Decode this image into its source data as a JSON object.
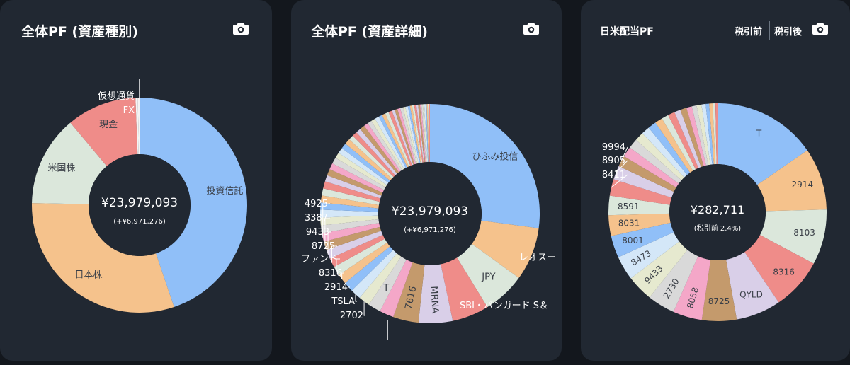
{
  "colors": {
    "background": "#13171d",
    "card": "#212832",
    "hole": "#212832",
    "label_on_slice": "#3a3f47",
    "label_outside": "#ffffff",
    "separator": "#f4f4f4"
  },
  "cards": [
    {
      "title": "全体PF (資産種別)",
      "camera_icon": "camera-icon"
    },
    {
      "title": "全体PF (資産詳細)",
      "camera_icon": "camera-icon"
    },
    {
      "title": "日米配当PF",
      "toggle_before": "税引前",
      "toggle_after": "税引後",
      "camera_icon": "camera-icon"
    }
  ],
  "chart_data": [
    {
      "type": "pie",
      "title": "全体PF (資産種別)",
      "center_value": "¥23,979,093",
      "center_sub": "(+¥6,971,276)",
      "slices": [
        {
          "label": "投資信託",
          "value": 44.8,
          "color": "#90bff8"
        },
        {
          "label": "日本株",
          "value": 30.5,
          "color": "#f5c28c"
        },
        {
          "label": "米国株",
          "value": 13.6,
          "color": "#dbe7db"
        },
        {
          "label": "現金",
          "value": 10.5,
          "color": "#ef8c89"
        },
        {
          "label": "FX",
          "value": 0.35,
          "color": "#f4f4f4"
        },
        {
          "label": "仮想通貨",
          "value": 0.25,
          "color": "#f4f4f4"
        }
      ]
    },
    {
      "type": "pie",
      "title": "全体PF (資産詳細)",
      "center_value": "¥23,979,093",
      "center_sub": "(+¥6,971,276)",
      "slices": [
        {
          "label": "ひふみ投信",
          "value": 26.0,
          "color": "#90bff8"
        },
        {
          "label": "レオスー",
          "value": 7.5,
          "color": "#f5c28c"
        },
        {
          "label": "JPY",
          "value": 6.0,
          "color": "#dbe7db"
        },
        {
          "label": "SBI・バンガード S＆",
          "value": 5.2,
          "color": "#ef8c89"
        },
        {
          "label": "MRNA",
          "value": 4.8,
          "color": "#d9cfe8"
        },
        {
          "label": "7616",
          "value": 3.6,
          "color": "#c49a6c"
        },
        {
          "label": "",
          "value": 2.0,
          "color": "#f4a7c8"
        },
        {
          "label": "T",
          "value": 1.8,
          "color": "#d9d9d9"
        },
        {
          "label": "2702",
          "value": 1.6,
          "color": "#e6e9cf"
        },
        {
          "label": "TSLA",
          "value": 1.5,
          "color": "#d4e7f8"
        },
        {
          "label": "2914",
          "value": 1.4,
          "color": "#90bff8"
        },
        {
          "label": "8316",
          "value": 1.4,
          "color": "#f5c28c"
        },
        {
          "label": "ファンド",
          "value": 1.3,
          "color": "#dbe7db"
        },
        {
          "label": "8725",
          "value": 1.3,
          "color": "#ef8c89"
        },
        {
          "label": "9433",
          "value": 1.3,
          "color": "#d9cfe8"
        },
        {
          "label": "3387",
          "value": 1.2,
          "color": "#c49a6c"
        },
        {
          "label": "4925",
          "value": 1.2,
          "color": "#f4a7c8"
        },
        {
          "label": "",
          "value": 1.1,
          "color": "#d9d9d9"
        },
        {
          "label": "",
          "value": 1.1,
          "color": "#e6e9cf"
        },
        {
          "label": "",
          "value": 1.1,
          "color": "#d4e7f8"
        },
        {
          "label": "",
          "value": 1.0,
          "color": "#90bff8"
        },
        {
          "label": "",
          "value": 1.0,
          "color": "#f5c28c"
        },
        {
          "label": "",
          "value": 1.0,
          "color": "#dbe7db"
        },
        {
          "label": "",
          "value": 1.0,
          "color": "#ef8c89"
        },
        {
          "label": "",
          "value": 0.9,
          "color": "#d9cfe8"
        },
        {
          "label": "",
          "value": 0.9,
          "color": "#c49a6c"
        },
        {
          "label": "",
          "value": 0.9,
          "color": "#f4a7c8"
        },
        {
          "label": "",
          "value": 0.9,
          "color": "#d9d9d9"
        },
        {
          "label": "",
          "value": 0.8,
          "color": "#e6e9cf"
        },
        {
          "label": "",
          "value": 0.8,
          "color": "#d4e7f8"
        },
        {
          "label": "",
          "value": 0.8,
          "color": "#90bff8"
        },
        {
          "label": "",
          "value": 0.8,
          "color": "#f5c28c"
        },
        {
          "label": "",
          "value": 0.7,
          "color": "#dbe7db"
        },
        {
          "label": "",
          "value": 0.7,
          "color": "#ef8c89"
        },
        {
          "label": "",
          "value": 0.7,
          "color": "#d9cfe8"
        },
        {
          "label": "",
          "value": 0.7,
          "color": "#c49a6c"
        },
        {
          "label": "",
          "value": 0.6,
          "color": "#f4a7c8"
        },
        {
          "label": "",
          "value": 0.6,
          "color": "#d9d9d9"
        },
        {
          "label": "",
          "value": 0.6,
          "color": "#e6e9cf"
        },
        {
          "label": "",
          "value": 0.6,
          "color": "#d4e7f8"
        },
        {
          "label": "",
          "value": 0.5,
          "color": "#90bff8"
        },
        {
          "label": "",
          "value": 0.5,
          "color": "#f5c28c"
        },
        {
          "label": "",
          "value": 0.5,
          "color": "#dbe7db"
        },
        {
          "label": "",
          "value": 0.5,
          "color": "#ef8c89"
        },
        {
          "label": "",
          "value": 0.4,
          "color": "#d9cfe8"
        },
        {
          "label": "",
          "value": 0.4,
          "color": "#c49a6c"
        },
        {
          "label": "",
          "value": 0.4,
          "color": "#f4a7c8"
        },
        {
          "label": "",
          "value": 0.4,
          "color": "#d9d9d9"
        },
        {
          "label": "",
          "value": 0.35,
          "color": "#e6e9cf"
        },
        {
          "label": "",
          "value": 0.35,
          "color": "#d4e7f8"
        },
        {
          "label": "",
          "value": 0.3,
          "color": "#90bff8"
        },
        {
          "label": "",
          "value": 0.3,
          "color": "#f5c28c"
        },
        {
          "label": "",
          "value": 0.3,
          "color": "#dbe7db"
        },
        {
          "label": "",
          "value": 0.3,
          "color": "#ef8c89"
        },
        {
          "label": "",
          "value": 0.25,
          "color": "#d9cfe8"
        },
        {
          "label": "",
          "value": 0.25,
          "color": "#c49a6c"
        },
        {
          "label": "",
          "value": 0.2,
          "color": "#f4a7c8"
        },
        {
          "label": "",
          "value": 0.2,
          "color": "#d9d9d9"
        },
        {
          "label": "",
          "value": 0.2,
          "color": "#e6e9cf"
        },
        {
          "label": "",
          "value": 0.2,
          "color": "#d4e7f8"
        },
        {
          "label": "",
          "value": 0.15,
          "color": "#90bff8"
        },
        {
          "label": "",
          "value": 0.15,
          "color": "#f5c28c"
        },
        {
          "label": "",
          "value": 0.15,
          "color": "#dbe7db"
        },
        {
          "label": "",
          "value": 0.15,
          "color": "#ef8c89"
        }
      ]
    },
    {
      "type": "pie",
      "title": "日米配当PF",
      "center_value": "¥282,711",
      "center_sub": "(税引前 2.4%)",
      "slices": [
        {
          "label": "T",
          "value": 15.0,
          "color": "#90bff8"
        },
        {
          "label": "2914",
          "value": 9.0,
          "color": "#f5c28c"
        },
        {
          "label": "8103",
          "value": 8.0,
          "color": "#dbe7db"
        },
        {
          "label": "8316",
          "value": 7.5,
          "color": "#ef8c89"
        },
        {
          "label": "QYLD",
          "value": 6.5,
          "color": "#d9cfe8"
        },
        {
          "label": "8725",
          "value": 5.0,
          "color": "#c49a6c"
        },
        {
          "label": "8058",
          "value": 4.2,
          "color": "#f4a7c8"
        },
        {
          "label": "2730",
          "value": 4.0,
          "color": "#d9d9d9"
        },
        {
          "label": "9433",
          "value": 3.8,
          "color": "#e6e9cf"
        },
        {
          "label": "8473",
          "value": 3.5,
          "color": "#d4e7f8"
        },
        {
          "label": "8001",
          "value": 3.2,
          "color": "#90bff8"
        },
        {
          "label": "8031",
          "value": 3.0,
          "color": "#f5c28c"
        },
        {
          "label": "8591",
          "value": 2.8,
          "color": "#dbe7db"
        },
        {
          "label": "8411",
          "value": 2.4,
          "color": "#ef8c89"
        },
        {
          "label": "8905",
          "value": 2.0,
          "color": "#d9cfe8"
        },
        {
          "label": "9994",
          "value": 1.6,
          "color": "#c49a6c"
        },
        {
          "label": "",
          "value": 1.5,
          "color": "#f4a7c8"
        },
        {
          "label": "",
          "value": 1.4,
          "color": "#d9d9d9"
        },
        {
          "label": "",
          "value": 1.3,
          "color": "#e6e9cf"
        },
        {
          "label": "",
          "value": 1.2,
          "color": "#d4e7f8"
        },
        {
          "label": "",
          "value": 1.2,
          "color": "#90bff8"
        },
        {
          "label": "",
          "value": 1.1,
          "color": "#f5c28c"
        },
        {
          "label": "",
          "value": 1.0,
          "color": "#dbe7db"
        },
        {
          "label": "",
          "value": 1.0,
          "color": "#ef8c89"
        },
        {
          "label": "",
          "value": 0.9,
          "color": "#d9cfe8"
        },
        {
          "label": "",
          "value": 0.9,
          "color": "#c49a6c"
        },
        {
          "label": "",
          "value": 0.8,
          "color": "#f4a7c8"
        },
        {
          "label": "",
          "value": 0.7,
          "color": "#d9d9d9"
        },
        {
          "label": "",
          "value": 0.7,
          "color": "#e6e9cf"
        },
        {
          "label": "",
          "value": 0.6,
          "color": "#d4e7f8"
        },
        {
          "label": "",
          "value": 0.5,
          "color": "#90bff8"
        },
        {
          "label": "",
          "value": 0.5,
          "color": "#f5c28c"
        },
        {
          "label": "",
          "value": 0.4,
          "color": "#dbe7db"
        },
        {
          "label": "",
          "value": 0.3,
          "color": "#ef8c89"
        }
      ]
    }
  ]
}
